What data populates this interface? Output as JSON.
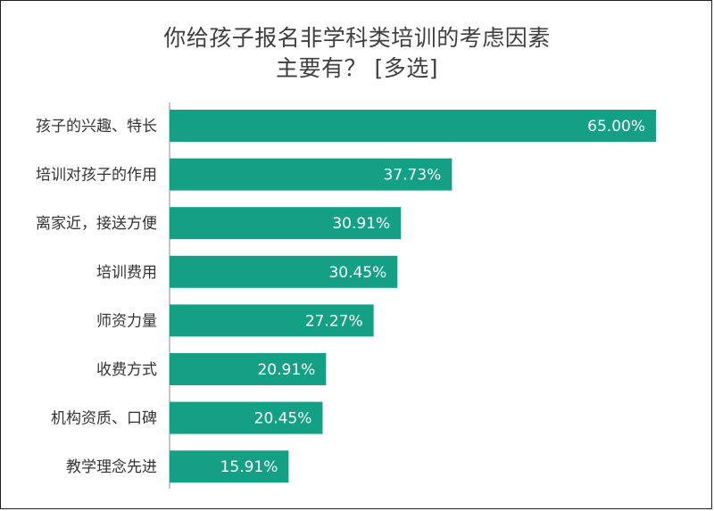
{
  "chart_data": {
    "type": "bar",
    "orientation": "horizontal",
    "title_line1": "你给孩子报名非学科类培训的考虑因素",
    "title_line2": "主要有？ [多选]",
    "categories": [
      "孩子的兴趣、特长",
      "培训对孩子的作用",
      "离家近，接送方便",
      "培训费用",
      "师资力量",
      "收费方式",
      "机构资质、口碑",
      "教学理念先进"
    ],
    "values": [
      65.0,
      37.73,
      30.91,
      30.45,
      27.27,
      20.91,
      20.45,
      15.91
    ],
    "value_labels": [
      "65.00%",
      "37.73%",
      "30.91%",
      "30.45%",
      "27.27%",
      "20.91%",
      "20.45%",
      "15.91%"
    ],
    "xlim": [
      0,
      65.0
    ],
    "bar_color": "#14a085",
    "label_color": "#ffffff",
    "grid": false,
    "legend": "none"
  }
}
